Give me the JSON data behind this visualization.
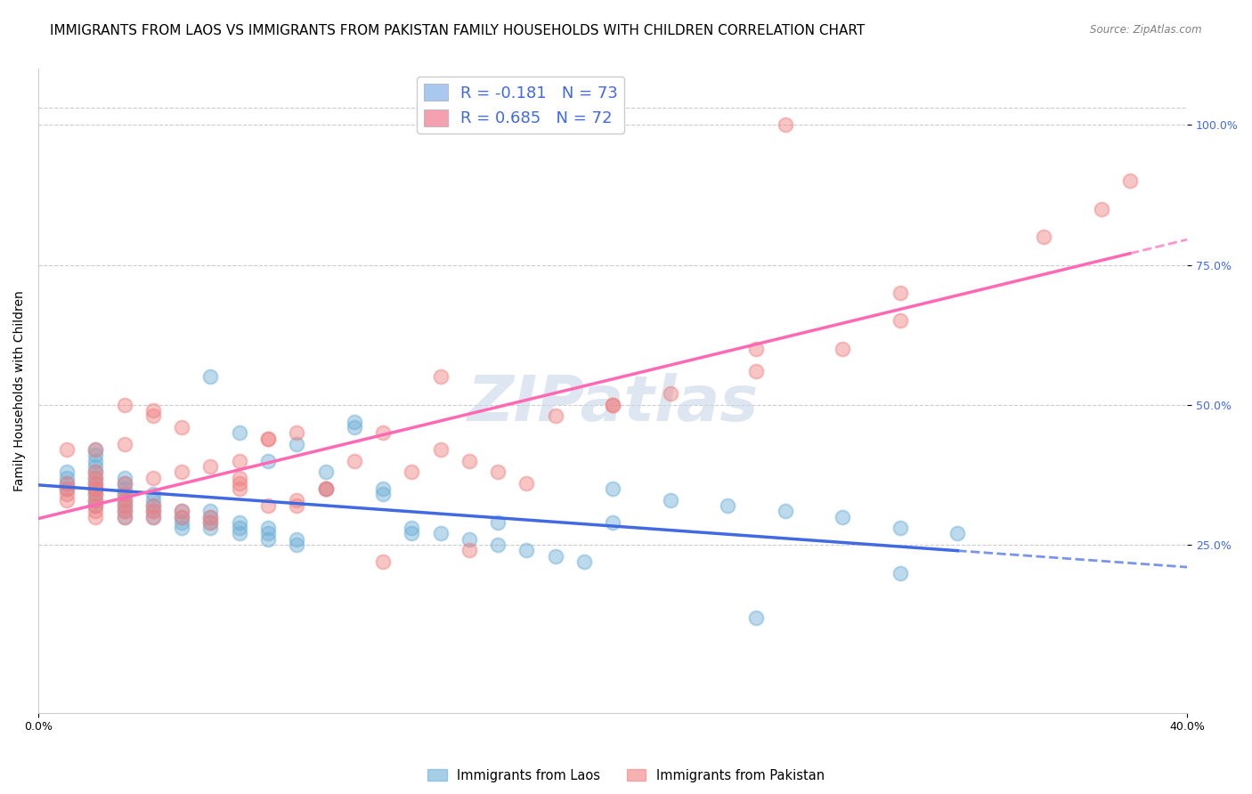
{
  "title": "IMMIGRANTS FROM LAOS VS IMMIGRANTS FROM PAKISTAN FAMILY HOUSEHOLDS WITH CHILDREN CORRELATION CHART",
  "source": "Source: ZipAtlas.com",
  "ylabel": "Family Households with Children",
  "right_yticks": [
    "25.0%",
    "50.0%",
    "75.0%",
    "100.0%"
  ],
  "right_ytick_vals": [
    0.25,
    0.5,
    0.75,
    1.0
  ],
  "legend_entries": [
    {
      "label": "R = -0.181   N = 73",
      "color": "#a8c8f0"
    },
    {
      "label": "R = 0.685   N = 72",
      "color": "#f4a0b0"
    }
  ],
  "laos_color": "#6baed6",
  "pakistan_color": "#f08080",
  "laos_line_color": "#4169E1",
  "pakistan_line_color": "#FF69B4",
  "xlim": [
    0.0,
    0.4
  ],
  "ylim": [
    -0.05,
    1.1
  ],
  "laos_scatter_x": [
    0.01,
    0.01,
    0.01,
    0.01,
    0.02,
    0.02,
    0.02,
    0.02,
    0.02,
    0.02,
    0.02,
    0.02,
    0.02,
    0.02,
    0.02,
    0.03,
    0.03,
    0.03,
    0.03,
    0.03,
    0.03,
    0.03,
    0.03,
    0.04,
    0.04,
    0.04,
    0.04,
    0.04,
    0.05,
    0.05,
    0.05,
    0.05,
    0.06,
    0.06,
    0.06,
    0.06,
    0.07,
    0.07,
    0.07,
    0.08,
    0.08,
    0.08,
    0.09,
    0.09,
    0.1,
    0.1,
    0.11,
    0.11,
    0.12,
    0.12,
    0.13,
    0.14,
    0.15,
    0.16,
    0.17,
    0.18,
    0.19,
    0.2,
    0.22,
    0.24,
    0.26,
    0.28,
    0.3,
    0.32,
    0.06,
    0.07,
    0.08,
    0.09,
    0.13,
    0.16,
    0.2,
    0.25,
    0.3
  ],
  "laos_scatter_y": [
    0.35,
    0.36,
    0.37,
    0.38,
    0.32,
    0.33,
    0.34,
    0.35,
    0.36,
    0.37,
    0.38,
    0.39,
    0.4,
    0.41,
    0.42,
    0.3,
    0.31,
    0.32,
    0.33,
    0.34,
    0.35,
    0.36,
    0.37,
    0.3,
    0.31,
    0.32,
    0.33,
    0.34,
    0.28,
    0.29,
    0.3,
    0.31,
    0.28,
    0.29,
    0.3,
    0.31,
    0.27,
    0.28,
    0.29,
    0.26,
    0.27,
    0.28,
    0.25,
    0.26,
    0.35,
    0.38,
    0.46,
    0.47,
    0.34,
    0.35,
    0.27,
    0.27,
    0.26,
    0.25,
    0.24,
    0.23,
    0.22,
    0.35,
    0.33,
    0.32,
    0.31,
    0.3,
    0.28,
    0.27,
    0.55,
    0.45,
    0.4,
    0.43,
    0.28,
    0.29,
    0.29,
    0.12,
    0.2
  ],
  "pakistan_scatter_x": [
    0.01,
    0.01,
    0.01,
    0.01,
    0.01,
    0.02,
    0.02,
    0.02,
    0.02,
    0.02,
    0.02,
    0.02,
    0.02,
    0.02,
    0.02,
    0.03,
    0.03,
    0.03,
    0.03,
    0.03,
    0.03,
    0.03,
    0.04,
    0.04,
    0.04,
    0.04,
    0.04,
    0.05,
    0.05,
    0.05,
    0.06,
    0.06,
    0.07,
    0.07,
    0.07,
    0.08,
    0.08,
    0.09,
    0.09,
    0.1,
    0.11,
    0.12,
    0.13,
    0.14,
    0.15,
    0.16,
    0.17,
    0.18,
    0.2,
    0.22,
    0.25,
    0.28,
    0.3,
    0.02,
    0.03,
    0.04,
    0.05,
    0.06,
    0.07,
    0.08,
    0.09,
    0.1,
    0.12,
    0.15,
    0.2,
    0.25,
    0.3,
    0.35,
    0.37,
    0.38,
    0.14,
    0.26
  ],
  "pakistan_scatter_y": [
    0.33,
    0.34,
    0.35,
    0.36,
    0.42,
    0.3,
    0.31,
    0.32,
    0.33,
    0.34,
    0.35,
    0.36,
    0.37,
    0.38,
    0.42,
    0.3,
    0.31,
    0.32,
    0.33,
    0.34,
    0.43,
    0.5,
    0.3,
    0.31,
    0.32,
    0.48,
    0.49,
    0.3,
    0.31,
    0.38,
    0.29,
    0.3,
    0.35,
    0.36,
    0.37,
    0.32,
    0.44,
    0.32,
    0.45,
    0.35,
    0.4,
    0.45,
    0.38,
    0.42,
    0.4,
    0.38,
    0.36,
    0.48,
    0.5,
    0.52,
    0.56,
    0.6,
    0.65,
    0.35,
    0.36,
    0.37,
    0.46,
    0.39,
    0.4,
    0.44,
    0.33,
    0.35,
    0.22,
    0.24,
    0.5,
    0.6,
    0.7,
    0.8,
    0.85,
    0.9,
    0.55,
    1.0
  ],
  "background_color": "#ffffff",
  "grid_color": "#cccccc",
  "title_fontsize": 11,
  "axis_label_fontsize": 10,
  "tick_fontsize": 9,
  "watermark": "ZIPatlas",
  "watermark_color": "#c8d8e8",
  "watermark_fontsize": 52
}
